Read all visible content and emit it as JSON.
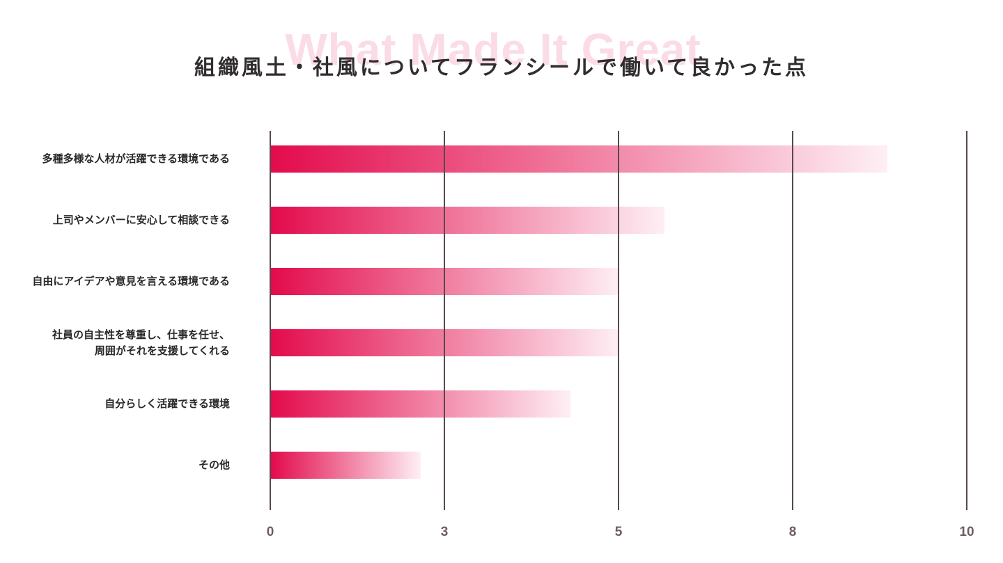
{
  "header": {
    "title": "組織風土・社風についてフランシールで働いて良かった点",
    "watermark": "What Made It Great"
  },
  "chart_data": {
    "type": "bar",
    "orientation": "horizontal",
    "title": "組織風土・社風についてフランシールで働いて良かった点",
    "watermark_text": "What Made It Great",
    "categories": [
      "多種多様な人材が活躍できる環境である",
      "上司やメンバーに安心して相談できる",
      "自由にアイデアや意見を言える環境である",
      "社員の自主性を尊重し、仕事を任せ、\n周囲がそれを支援してくれる",
      "自分らしく活躍できる環境",
      "その他"
    ],
    "values": [
      8.85,
      5.65,
      5.0,
      5.0,
      4.3,
      2.15
    ],
    "xlim": [
      0,
      10
    ],
    "x_ticks": [
      {
        "value": 0,
        "label": "0"
      },
      {
        "value": 2.5,
        "label": "3"
      },
      {
        "value": 5,
        "label": "5"
      },
      {
        "value": 7.5,
        "label": "8"
      },
      {
        "value": 10,
        "label": "10"
      }
    ],
    "ylabel": "",
    "xlabel": "",
    "legend": "none",
    "grid": "vertical-only",
    "colors": {
      "bar_gradient_start": "#e30b4c",
      "bar_gradient_end": "#feeff5",
      "gridline": "#564850",
      "tick_text": "#6e5a64",
      "category_text": "#2b282b",
      "title_text": "#312d2f",
      "watermark": "#fbdce6"
    }
  }
}
